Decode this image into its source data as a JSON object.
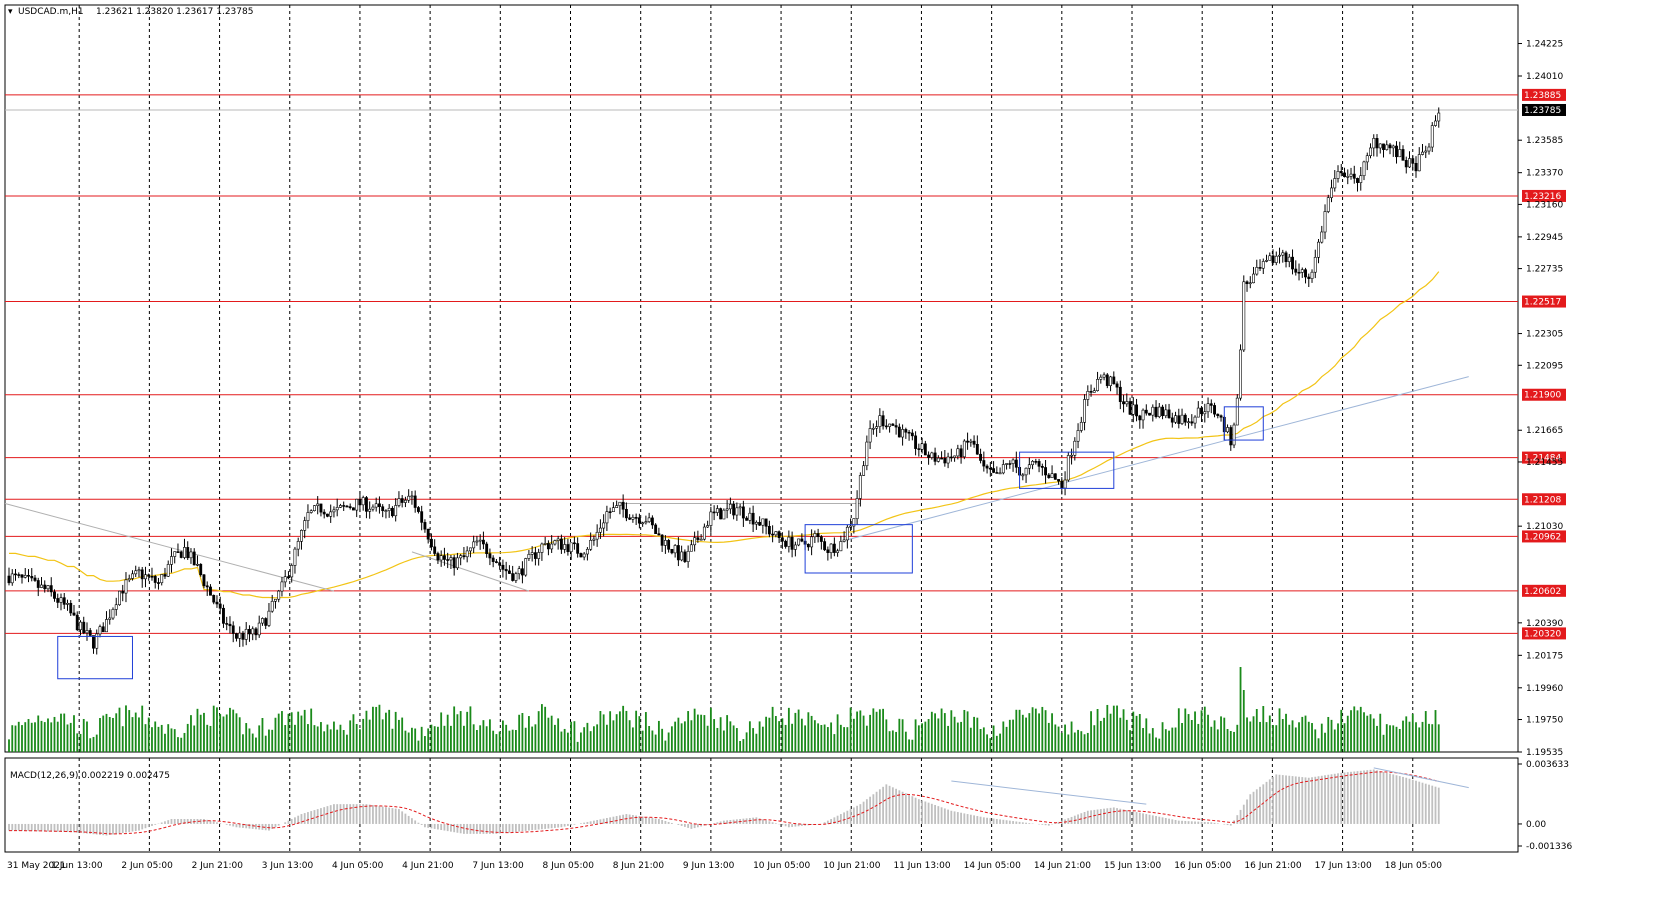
{
  "header": {
    "symbol": "USDCAD.m,H1",
    "ohlc": "1.23621 1.23820 1.23617 1.23785"
  },
  "macd_header": "MACD(12,26,9) 0.002219 0.002475",
  "colors": {
    "bull": "#000000",
    "bear": "#000000",
    "level": "#e31a1c",
    "ma": "#f2c416",
    "trend": "#9fb6d8",
    "box": "#1f3fd8",
    "volume": "#1a8a1a",
    "macd_hist": "#c0c0c0",
    "macd_signal": "#e31a1c",
    "grid": "#000000"
  },
  "chart_data": [
    {
      "type": "candlestick",
      "ylim": [
        1.19535,
        1.2448
      ],
      "price_ticks": [
        "1.24225",
        "1.24010",
        "1.23585",
        "1.23370",
        "1.23160",
        "1.22945",
        "1.22735",
        "1.22305",
        "1.22095",
        "1.21665",
        "1.21455",
        "1.21030",
        "1.20390",
        "1.20175",
        "1.19960",
        "1.19750",
        "1.19535"
      ],
      "levels": [
        "1.23885",
        "1.23216",
        "1.22517",
        "1.21900",
        "1.21484",
        "1.21208",
        "1.20962",
        "1.20602",
        "1.20320"
      ],
      "current_price": "1.23785",
      "x_labels": [
        "31 May 2021",
        "1 Jun 13:00",
        "2 Jun 05:00",
        "2 Jun 21:00",
        "3 Jun 13:00",
        "4 Jun 05:00",
        "4 Jun 21:00",
        "7 Jun 13:00",
        "8 Jun 05:00",
        "8 Jun 21:00",
        "9 Jun 13:00",
        "10 Jun 05:00",
        "10 Jun 21:00",
        "11 Jun 13:00",
        "14 Jun 05:00",
        "14 Jun 21:00",
        "15 Jun 13:00",
        "16 Jun 05:00",
        "16 Jun 21:00",
        "17 Jun 13:00",
        "18 Jun 05:00"
      ],
      "close_path": [
        [
          0,
          1.207
        ],
        [
          6,
          1.2066
        ],
        [
          12,
          1.206
        ],
        [
          18,
          1.2048
        ],
        [
          22,
          1.2035
        ],
        [
          26,
          1.2026
        ],
        [
          30,
          1.204
        ],
        [
          34,
          1.206
        ],
        [
          40,
          1.2072
        ],
        [
          46,
          1.2065
        ],
        [
          50,
          1.208
        ],
        [
          54,
          1.2088
        ],
        [
          58,
          1.2075
        ],
        [
          62,
          1.2058
        ],
        [
          66,
          1.204
        ],
        [
          70,
          1.203
        ],
        [
          76,
          1.2032
        ],
        [
          80,
          1.2045
        ],
        [
          84,
          1.2062
        ],
        [
          88,
          1.2085
        ],
        [
          92,
          1.211
        ],
        [
          96,
          1.2115
        ],
        [
          100,
          1.2112
        ],
        [
          104,
          1.2116
        ],
        [
          108,
          1.2118
        ],
        [
          112,
          1.2116
        ],
        [
          116,
          1.211
        ],
        [
          120,
          1.2118
        ],
        [
          124,
          1.2122
        ],
        [
          128,
          1.2102
        ],
        [
          132,
          1.2084
        ],
        [
          136,
          1.2078
        ],
        [
          140,
          1.2082
        ],
        [
          144,
          1.2092
        ],
        [
          148,
          1.2086
        ],
        [
          152,
          1.2075
        ],
        [
          156,
          1.207
        ],
        [
          160,
          1.208
        ],
        [
          164,
          1.209
        ],
        [
          168,
          1.2092
        ],
        [
          172,
          1.209
        ],
        [
          176,
          1.2086
        ],
        [
          180,
          1.2094
        ],
        [
          184,
          1.2112
        ],
        [
          188,
          1.2115
        ],
        [
          192,
          1.211
        ],
        [
          196,
          1.2108
        ],
        [
          200,
          1.2096
        ],
        [
          204,
          1.2088
        ],
        [
          208,
          1.208
        ],
        [
          212,
          1.2095
        ],
        [
          216,
          1.211
        ],
        [
          220,
          1.2112
        ],
        [
          224,
          1.2115
        ],
        [
          228,
          1.211
        ],
        [
          232,
          1.2104
        ],
        [
          236,
          1.2096
        ],
        [
          240,
          1.2092
        ],
        [
          244,
          1.209
        ],
        [
          248,
          1.2096
        ],
        [
          252,
          1.2088
        ],
        [
          256,
          1.2092
        ],
        [
          260,
          1.211
        ],
        [
          264,
          1.216
        ],
        [
          268,
          1.2174
        ],
        [
          272,
          1.217
        ],
        [
          276,
          1.2162
        ],
        [
          280,
          1.2155
        ],
        [
          284,
          1.2148
        ],
        [
          288,
          1.2148
        ],
        [
          292,
          1.215
        ],
        [
          296,
          1.216
        ],
        [
          300,
          1.214
        ],
        [
          304,
          1.2135
        ],
        [
          308,
          1.2146
        ],
        [
          312,
          1.2138
        ],
        [
          316,
          1.2144
        ],
        [
          320,
          1.2138
        ],
        [
          324,
          1.213
        ],
        [
          328,
          1.2162
        ],
        [
          332,
          1.219
        ],
        [
          336,
          1.2202
        ],
        [
          340,
          1.2196
        ],
        [
          344,
          1.2182
        ],
        [
          348,
          1.2176
        ],
        [
          352,
          1.218
        ],
        [
          356,
          1.2178
        ],
        [
          360,
          1.2174
        ],
        [
          364,
          1.2175
        ],
        [
          368,
          1.2182
        ],
        [
          372,
          1.2178
        ],
        [
          374,
          1.2168
        ],
        [
          376,
          1.216
        ],
        [
          378,
          1.2185
        ],
        [
          380,
          1.2262
        ],
        [
          384,
          1.227
        ],
        [
          388,
          1.2278
        ],
        [
          392,
          1.2285
        ],
        [
          396,
          1.2272
        ],
        [
          400,
          1.2268
        ],
        [
          402,
          1.228
        ],
        [
          406,
          1.232
        ],
        [
          410,
          1.234
        ],
        [
          414,
          1.233
        ],
        [
          418,
          1.2345
        ],
        [
          420,
          1.2358
        ],
        [
          424,
          1.2355
        ],
        [
          428,
          1.2348
        ],
        [
          432,
          1.234
        ],
        [
          436,
          1.235
        ],
        [
          440,
          1.2378
        ]
      ],
      "total_bars": 441
    },
    {
      "type": "bar",
      "name": "volume",
      "ylim": [
        0,
        1
      ]
    },
    {
      "type": "bar",
      "name": "MACD(12,26,9)",
      "ylim": [
        -0.001336,
        0.003633
      ],
      "y_ticks": [
        "0.003633",
        "0.00",
        "-0.001336"
      ],
      "macd_path": [
        [
          0,
          -0.0004
        ],
        [
          20,
          -0.0005
        ],
        [
          30,
          -0.0007
        ],
        [
          40,
          -0.0004
        ],
        [
          50,
          0.0003
        ],
        [
          60,
          0.0003
        ],
        [
          70,
          -0.0002
        ],
        [
          80,
          -0.0004
        ],
        [
          90,
          0.0006
        ],
        [
          100,
          0.0012
        ],
        [
          110,
          0.0012
        ],
        [
          120,
          0.0009
        ],
        [
          128,
          -0.0002
        ],
        [
          140,
          -0.0006
        ],
        [
          150,
          -0.0006
        ],
        [
          160,
          -0.0004
        ],
        [
          170,
          -0.0002
        ],
        [
          180,
          0.0002
        ],
        [
          190,
          0.0006
        ],
        [
          200,
          0.0003
        ],
        [
          210,
          -0.0003
        ],
        [
          220,
          0.0002
        ],
        [
          230,
          0.0004
        ],
        [
          240,
          -0.0002
        ],
        [
          250,
          0.0
        ],
        [
          262,
          0.0012
        ],
        [
          270,
          0.0024
        ],
        [
          280,
          0.0015
        ],
        [
          290,
          0.0008
        ],
        [
          300,
          0.0004
        ],
        [
          320,
          -0.0001
        ],
        [
          332,
          0.0008
        ],
        [
          340,
          0.001
        ],
        [
          350,
          0.0006
        ],
        [
          360,
          0.0002
        ],
        [
          370,
          0.0001
        ],
        [
          376,
          -0.0001
        ],
        [
          382,
          0.0018
        ],
        [
          390,
          0.003
        ],
        [
          400,
          0.0028
        ],
        [
          410,
          0.0031
        ],
        [
          420,
          0.0033
        ],
        [
          430,
          0.0028
        ],
        [
          440,
          0.0022
        ]
      ]
    }
  ]
}
